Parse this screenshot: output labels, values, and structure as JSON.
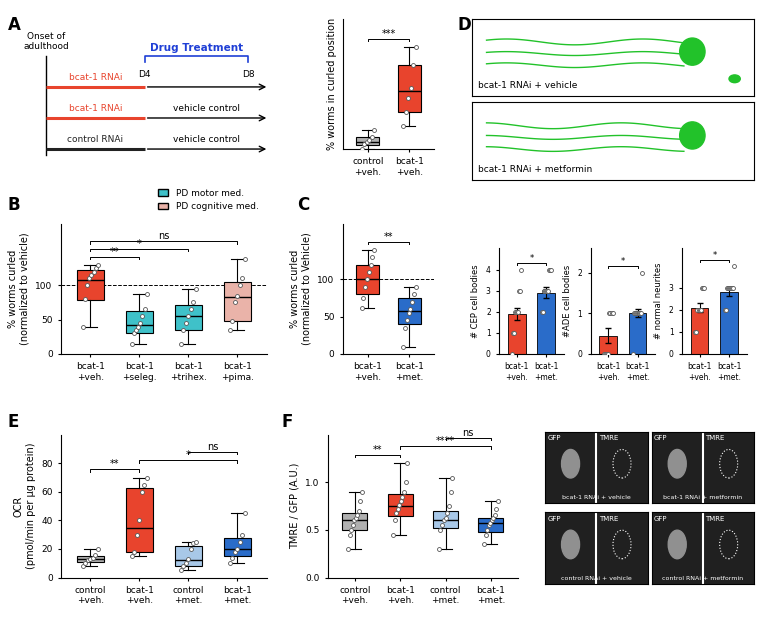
{
  "diagram": {
    "panel": "A",
    "onset": "Onset of\nadulthood",
    "days": [
      "D4",
      "D8"
    ],
    "treatment_title": "Drug Treatment",
    "treatment_color": "#1f3fd6",
    "rows": [
      {
        "rnai": "bcat-1 RNAi",
        "color": "#e8442d"
      },
      {
        "rnai": "bcat-1 RNAi",
        "color": "#e8442d",
        "treatment": "vehicle control"
      },
      {
        "rnai": "control RNAi",
        "color": "#222222",
        "treatment": "vehicle control"
      }
    ]
  },
  "chart_data": [
    {
      "type": "box",
      "ylabel": "% worms in curled position",
      "categories": [
        "control\n+veh.",
        "bcat-1\n+veh."
      ],
      "colors": [
        "#b0b0b0",
        "#e8442d"
      ],
      "boxes": [
        {
          "whislo": 0,
          "q1": 0.8,
          "med": 1.5,
          "q3": 2.5,
          "whishi": 4
        },
        {
          "whislo": 5,
          "q1": 8,
          "med": 12.5,
          "q3": 18,
          "whishi": 22
        }
      ],
      "points": [
        [
          0,
          1,
          1.5,
          2,
          2.5,
          4
        ],
        [
          5,
          8,
          11,
          13,
          18,
          22
        ]
      ],
      "ylim": [
        0,
        28
      ],
      "tick_labels": "x",
      "annotations": [
        {
          "between": [
            "control\n+veh.",
            "bcat-1\n+veh."
          ],
          "text": "***"
        }
      ]
    },
    {
      "panel": "B",
      "type": "box",
      "ylabel": "% worms curled\n(normalized to vehicle)",
      "categories": [
        "bcat-1\n+veh.",
        "bcat-1\n+seleg.",
        "bcat-1\n+trihex.",
        "bcat-1\n+pima."
      ],
      "colors": [
        "#e8442d",
        "#3fc1c9",
        "#3fc1c9",
        "#eab3a9"
      ],
      "boxes": [
        {
          "whislo": 40,
          "q1": 78,
          "med": 108,
          "q3": 122,
          "whishi": 130
        },
        {
          "whislo": 15,
          "q1": 30,
          "med": 42,
          "q3": 62,
          "whishi": 88
        },
        {
          "whislo": 15,
          "q1": 35,
          "med": 55,
          "q3": 72,
          "whishi": 95
        },
        {
          "whislo": 35,
          "q1": 48,
          "med": 83,
          "q3": 105,
          "whishi": 138
        }
      ],
      "points": [
        [
          40,
          80,
          100,
          110,
          115,
          120,
          125,
          130
        ],
        [
          15,
          30,
          35,
          40,
          45,
          55,
          65,
          88
        ],
        [
          15,
          35,
          45,
          55,
          65,
          75,
          95
        ],
        [
          35,
          48,
          75,
          85,
          100,
          110,
          138
        ]
      ],
      "ylim": [
        0,
        190
      ],
      "yticks": [
        0,
        50,
        100
      ],
      "reference_line": 100,
      "legend": "upper right",
      "legend_entries": [
        {
          "name": "PD motor med.",
          "color": "#3fc1c9"
        },
        {
          "name": "PD cognitive med.",
          "color": "#eab3a9"
        }
      ],
      "annotations": [
        {
          "between": [
            "bcat-1\n+veh.",
            "bcat-1\n+seleg."
          ],
          "text": "**"
        },
        {
          "between": [
            "bcat-1\n+veh.",
            "bcat-1\n+trihex."
          ],
          "text": "*"
        },
        {
          "between": [
            "bcat-1\n+veh.",
            "bcat-1\n+pima."
          ],
          "text": "ns"
        }
      ]
    },
    {
      "panel": "C",
      "type": "box",
      "ylabel": "% worms curled\n(normalized to Vehicle)",
      "categories": [
        "bcat-1\n+veh.",
        "bcat-1\n+met."
      ],
      "colors": [
        "#e8442d",
        "#2a6cc9"
      ],
      "boxes": [
        {
          "whislo": 62,
          "q1": 80,
          "med": 100,
          "q3": 120,
          "whishi": 140
        },
        {
          "whislo": 10,
          "q1": 40,
          "med": 58,
          "q3": 75,
          "whishi": 90
        }
      ],
      "points": [
        [
          62,
          75,
          90,
          100,
          110,
          120,
          130,
          140
        ],
        [
          10,
          35,
          45,
          55,
          60,
          70,
          80,
          90
        ]
      ],
      "ylim": [
        0,
        175
      ],
      "yticks": [
        0,
        50,
        100
      ],
      "reference_line": 100,
      "annotations": [
        {
          "between": [
            "bcat-1\n+veh.",
            "bcat-1\n+met."
          ],
          "text": "**"
        }
      ]
    },
    {
      "type": "bar",
      "ylabel": "# CEP cell bodies",
      "categories": [
        "bcat-1\n+veh.",
        "bcat-1\n+met."
      ],
      "colors": [
        "#e8442d",
        "#2a6cc9"
      ],
      "values": [
        1.9,
        2.9
      ],
      "errors": [
        0.3,
        0.25
      ],
      "points": [
        [
          0,
          1,
          1,
          2,
          2,
          2,
          2,
          3,
          3,
          4
        ],
        [
          2,
          2,
          3,
          3,
          3,
          3,
          3,
          3,
          4,
          4,
          4
        ]
      ],
      "ylim": [
        0,
        5
      ],
      "yticks": [
        0,
        1,
        2,
        3,
        4
      ],
      "annotations": [
        {
          "between": [
            "bcat-1\n+veh.",
            "bcat-1\n+met."
          ],
          "text": "*"
        }
      ]
    },
    {
      "type": "bar",
      "ylabel": "#ADE cell bodies",
      "categories": [
        "bcat-1\n+veh.",
        "bcat-1\n+met."
      ],
      "colors": [
        "#e8442d",
        "#2a6cc9"
      ],
      "values": [
        0.45,
        1.0
      ],
      "errors": [
        0.18,
        0.1
      ],
      "points": [
        [
          0,
          0,
          0,
          0,
          0,
          1,
          1,
          1,
          1
        ],
        [
          0,
          1,
          1,
          1,
          1,
          1,
          1,
          1,
          1,
          1,
          2
        ]
      ],
      "ylim": [
        0,
        2.6
      ],
      "yticks": [
        0,
        1,
        2
      ],
      "annotations": [
        {
          "between": [
            "bcat-1\n+veh.",
            "bcat-1\n+met."
          ],
          "text": "*"
        }
      ]
    },
    {
      "type": "bar",
      "ylabel": "# normal neurites",
      "categories": [
        "bcat-1\n+veh.",
        "bcat-1\n+met."
      ],
      "colors": [
        "#e8442d",
        "#2a6cc9"
      ],
      "values": [
        2.1,
        2.8
      ],
      "errors": [
        0.2,
        0.15
      ],
      "points": [
        [
          1,
          1,
          2,
          2,
          2,
          2,
          3,
          3,
          3
        ],
        [
          2,
          2,
          3,
          3,
          3,
          3,
          3,
          3,
          3,
          4
        ]
      ],
      "ylim": [
        0,
        4.8
      ],
      "yticks": [
        0,
        1,
        2,
        3
      ],
      "annotations": [
        {
          "between": [
            "bcat-1\n+veh.",
            "bcat-1\n+met."
          ],
          "text": "*"
        }
      ]
    },
    {
      "panel": "E",
      "type": "box",
      "ylabel": "OCR\n(pmol/min per μg protein)",
      "categories": [
        "control\n+veh.",
        "bcat-1\n+veh.",
        "control\n+met.",
        "bcat-1\n+met."
      ],
      "colors": [
        "#b0b0b0",
        "#e8442d",
        "#a8c8e8",
        "#2a6cc9"
      ],
      "boxes": [
        {
          "whislo": 8,
          "q1": 11,
          "med": 13,
          "q3": 15,
          "whishi": 20
        },
        {
          "whislo": 15,
          "q1": 18,
          "med": 35,
          "q3": 63,
          "whishi": 70
        },
        {
          "whislo": 5,
          "q1": 8,
          "med": 12,
          "q3": 22,
          "whishi": 25
        },
        {
          "whislo": 10,
          "q1": 15,
          "med": 20,
          "q3": 28,
          "whishi": 45
        }
      ],
      "points": [
        [
          8,
          10,
          12,
          13,
          14,
          16,
          20
        ],
        [
          15,
          18,
          30,
          40,
          60,
          65,
          70
        ],
        [
          5,
          8,
          10,
          13,
          20,
          24,
          25
        ],
        [
          10,
          14,
          18,
          20,
          25,
          30,
          45
        ]
      ],
      "ylim": [
        0,
        100
      ],
      "yticks": [
        0,
        20,
        40,
        60,
        80
      ],
      "annotations": [
        {
          "between": [
            "control\n+veh.",
            "bcat-1\n+veh."
          ],
          "text": "**"
        },
        {
          "between": [
            "bcat-1\n+veh.",
            "bcat-1\n+met."
          ],
          "text": "*"
        },
        {
          "between": [
            "control\n+met.",
            "bcat-1\n+met."
          ],
          "text": "ns"
        }
      ]
    },
    {
      "panel": "F",
      "type": "box",
      "ylabel": "TMRE / GFP (A.U.)",
      "categories": [
        "control\n+veh.",
        "bcat-1\n+veh.",
        "control\n+met.",
        "bcat-1\n+met."
      ],
      "colors": [
        "#b0b0b0",
        "#e8442d",
        "#a8c8e8",
        "#2a6cc9"
      ],
      "boxes": [
        {
          "whislo": 0.3,
          "q1": 0.5,
          "med": 0.6,
          "q3": 0.68,
          "whishi": 0.9
        },
        {
          "whislo": 0.45,
          "q1": 0.65,
          "med": 0.75,
          "q3": 0.88,
          "whishi": 1.2
        },
        {
          "whislo": 0.3,
          "q1": 0.52,
          "med": 0.6,
          "q3": 0.7,
          "whishi": 1.05
        },
        {
          "whislo": 0.35,
          "q1": 0.48,
          "med": 0.57,
          "q3": 0.63,
          "whishi": 0.8
        }
      ],
      "points": [
        [
          0.3,
          0.45,
          0.5,
          0.55,
          0.6,
          0.62,
          0.66,
          0.7,
          0.8,
          0.9
        ],
        [
          0.45,
          0.6,
          0.68,
          0.72,
          0.76,
          0.8,
          0.85,
          0.9,
          1.0,
          1.2
        ],
        [
          0.3,
          0.5,
          0.55,
          0.6,
          0.62,
          0.68,
          0.75,
          0.9,
          1.05
        ],
        [
          0.35,
          0.45,
          0.5,
          0.55,
          0.57,
          0.6,
          0.62,
          0.66,
          0.72,
          0.8
        ]
      ],
      "ylim": [
        0,
        1.5
      ],
      "yticks": [
        {
          "value": 0,
          "label": "0.0"
        },
        0.5,
        {
          "value": 1,
          "label": "1.0"
        }
      ],
      "annotations": [
        {
          "between": [
            "control\n+veh.",
            "bcat-1\n+veh."
          ],
          "text": "**"
        },
        {
          "between": [
            "bcat-1\n+veh.",
            "bcat-1\n+met."
          ],
          "text": "****"
        },
        {
          "between": [
            "control\n+met.",
            "bcat-1\n+met."
          ],
          "text": "ns"
        }
      ]
    }
  ],
  "images": {
    "D": {
      "panel": "D",
      "captions": [
        "bcat-1 RNAi + vehicle",
        "bcat-1 RNAi + metformin"
      ]
    },
    "F": {
      "channels": [
        "GFP",
        "TMRE"
      ],
      "captions": [
        "bcat-1 RNAi + vehicle",
        "bcat-1 RNAi + metformin",
        "control RNAi + vehicle",
        "control RNAi + metformin"
      ]
    }
  }
}
